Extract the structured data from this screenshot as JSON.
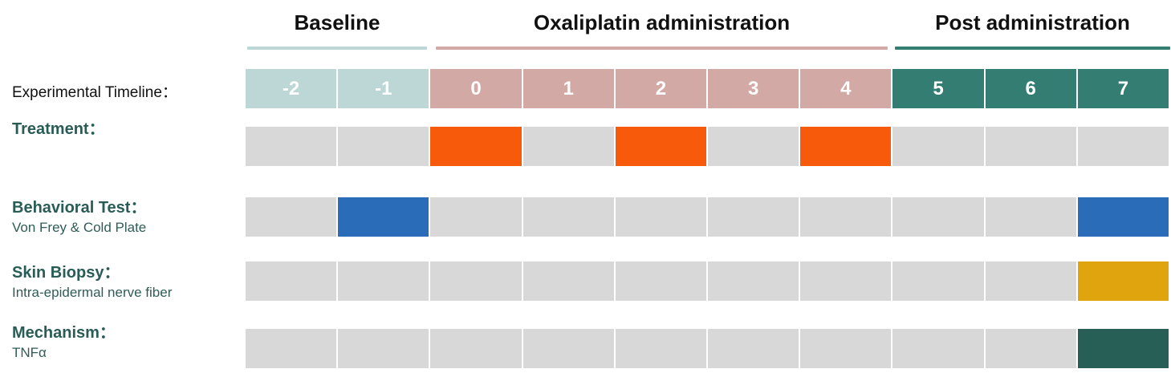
{
  "phases": [
    {
      "label": "Baseline",
      "color": "#bcd7d6"
    },
    {
      "label": "Oxaliplatin administration",
      "color": "#d3a9a5"
    },
    {
      "label": "Post administration",
      "color": "#337d73"
    }
  ],
  "timeline": {
    "label": "Experimental Timeline：",
    "days": [
      {
        "label": "-2",
        "phase": 0
      },
      {
        "label": "-1",
        "phase": 0
      },
      {
        "label": "0",
        "phase": 1
      },
      {
        "label": "1",
        "phase": 1
      },
      {
        "label": "2",
        "phase": 1
      },
      {
        "label": "3",
        "phase": 1
      },
      {
        "label": "4",
        "phase": 1
      },
      {
        "label": "5",
        "phase": 2
      },
      {
        "label": "6",
        "phase": 2
      },
      {
        "label": "7",
        "phase": 2
      }
    ]
  },
  "rows": [
    {
      "title": "Treatment：",
      "subtitle": "",
      "color": "#f85a0c",
      "active": [
        "0",
        "2",
        "4"
      ]
    },
    {
      "title": "Behavioral Test：",
      "subtitle": "Von Frey & Cold Plate",
      "color": "#2a6cb8",
      "active": [
        "-1",
        "7"
      ]
    },
    {
      "title": "Skin Biopsy：",
      "subtitle": "Intra-epidermal nerve fiber",
      "color": "#e0a40f",
      "active": [
        "7"
      ]
    },
    {
      "title": "Mechanism：",
      "subtitle": "TNFα",
      "color": "#275f57",
      "active": [
        "7"
      ]
    }
  ],
  "empty_color": "#d8d8d8"
}
